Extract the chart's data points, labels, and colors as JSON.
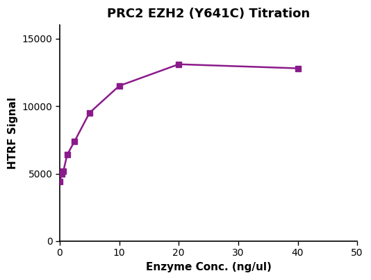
{
  "title": "PRC2 EZH2 (Y641C) Titration",
  "xlabel": "Enzyme Conc. (ng/ul)",
  "ylabel": "HTRF Signal",
  "x_data": [
    0,
    0.3125,
    0.625,
    1.25,
    2.5,
    5,
    10,
    20,
    40
  ],
  "y_data": [
    4400,
    5000,
    5200,
    6400,
    7400,
    9500,
    11500,
    13100,
    12800
  ],
  "line_color_hex": "#8B1A8B",
  "marker": "s",
  "marker_size": 6,
  "xlim": [
    0,
    50
  ],
  "ylim": [
    0,
    16000
  ],
  "xticks": [
    0,
    10,
    20,
    30,
    40,
    50
  ],
  "yticks": [
    0,
    5000,
    10000,
    15000
  ],
  "title_fontsize": 13,
  "axis_label_fontsize": 11,
  "tick_fontsize": 10,
  "background_color": "#ffffff",
  "line_width": 1.8
}
